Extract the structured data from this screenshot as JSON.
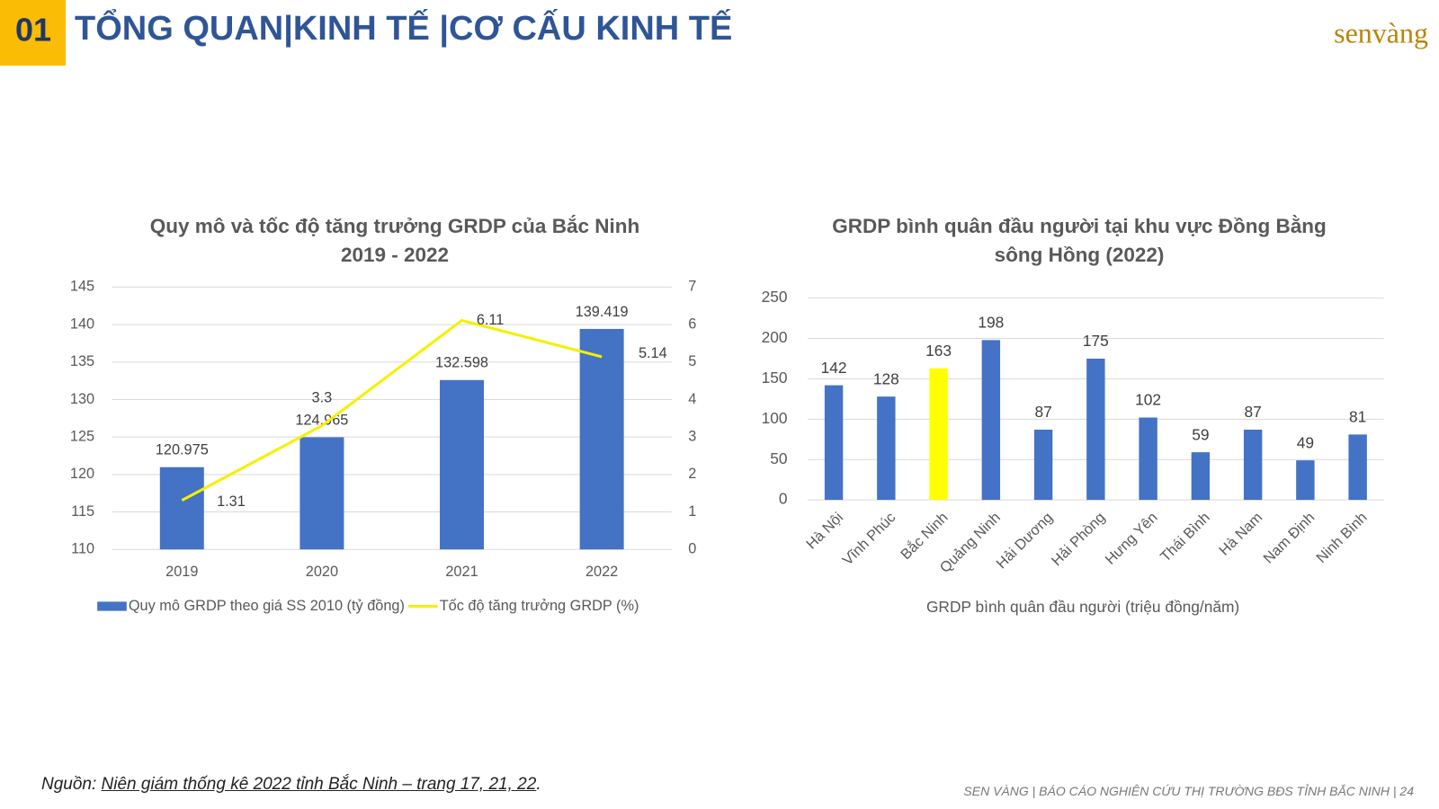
{
  "header": {
    "number": "01",
    "title": "TỔNG QUAN|KINH TẾ |CƠ CẤU KINH TẾ",
    "logo": "senvàng"
  },
  "chart_data": [
    {
      "type": "combo",
      "title": "Quy mô và tốc độ tăng trưởng GRDP của Bắc Ninh 2019 - 2022",
      "categories": [
        "2019",
        "2020",
        "2021",
        "2022"
      ],
      "series": [
        {
          "name": "Quy mô GRDP theo giá SS 2010 (tỷ đồng)",
          "type": "bar",
          "color": "#4472c4",
          "values": [
            120.975,
            124.965,
            132.598,
            139.419
          ]
        },
        {
          "name": "Tốc độ tăng trưởng GRDP (%)",
          "type": "line",
          "axis": "y2",
          "color": "#f5f000",
          "values": [
            1.31,
            3.3,
            6.11,
            5.14
          ]
        }
      ],
      "ylim": [
        110,
        145
      ],
      "yticks": [
        110,
        115,
        120,
        125,
        130,
        135,
        140,
        145
      ],
      "y2lim": [
        0,
        7
      ],
      "y2ticks": [
        0,
        1,
        2,
        3,
        4,
        5,
        6,
        7
      ],
      "grid": true,
      "legend": "bottom"
    },
    {
      "type": "bar",
      "title": "GRDP bình quân đầu người tại khu vực Đồng Bằng sông Hồng (2022)",
      "categories": [
        "Hà Nội",
        "Vĩnh Phúc",
        "Bắc Ninh",
        "Quảng Ninh",
        "Hải Dương",
        "Hải Phòng",
        "Hưng Yên",
        "Thái Bình",
        "Hà Nam",
        "Nam Định",
        "Ninh Bình"
      ],
      "values": [
        142,
        128,
        163,
        198,
        87,
        175,
        102,
        59,
        87,
        49,
        81
      ],
      "colors": [
        "#4472c4",
        "#4472c4",
        "#ffff00",
        "#4472c4",
        "#4472c4",
        "#4472c4",
        "#4472c4",
        "#4472c4",
        "#4472c4",
        "#4472c4",
        "#4472c4"
      ],
      "xlabel": "GRDP bình quân đầu người (triệu đồng/năm)",
      "ylim": [
        0,
        250
      ],
      "yticks": [
        0,
        50,
        100,
        150,
        200,
        250
      ],
      "grid": true
    }
  ],
  "source": {
    "prefix": "Nguồn: ",
    "link": "Niên giám thống kê 2022 tỉnh Bắc Ninh – trang 17, 21, 22",
    "suffix": "."
  },
  "footer": "SEN VÀNG | BÁO CÁO NGHIÊN CỨU THỊ TRƯỜNG BĐS TỈNH BẮC NINH | 24"
}
